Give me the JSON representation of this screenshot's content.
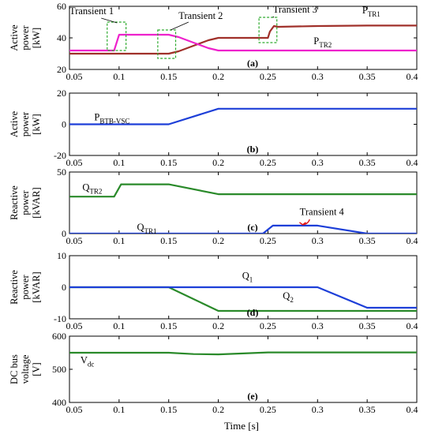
{
  "x_label": "Time [s]",
  "x_ticks": [
    "0.05",
    "0.1",
    "0.15",
    "0.2",
    "0.25",
    "0.3",
    "0.35",
    "0.4"
  ],
  "chart_data": [
    {
      "id": "a",
      "type": "line",
      "panel_label": "(a)",
      "ylabel_lines": [
        "Active",
        "power",
        "[kW]"
      ],
      "xlim": [
        0.05,
        0.4
      ],
      "ylim": [
        20,
        60
      ],
      "y_ticks": [
        "20",
        "40",
        "60"
      ],
      "series": [
        {
          "color": "#a0302a",
          "x": [
            0.05,
            0.095,
            0.15,
            0.16,
            0.175,
            0.19,
            0.2,
            0.25,
            0.252,
            0.256,
            0.26,
            0.3,
            0.35,
            0.4
          ],
          "y": [
            30,
            30,
            30,
            31.5,
            35,
            38.5,
            40,
            40,
            44,
            47.5,
            47,
            47.5,
            47.8,
            47.8
          ]
        },
        {
          "color": "#ee22cc",
          "x": [
            0.05,
            0.095,
            0.1,
            0.15,
            0.16,
            0.175,
            0.19,
            0.2,
            0.25,
            0.3,
            0.35,
            0.4
          ],
          "y": [
            32,
            32,
            42,
            42,
            40.5,
            37,
            33.5,
            32,
            32,
            32,
            32,
            32
          ]
        }
      ],
      "annotations": [
        {
          "text": "Transient 1",
          "x": 0.05,
          "y": 55
        },
        {
          "text": "Transient 2",
          "x": 0.16,
          "y": 52
        },
        {
          "text": "Transient 3",
          "x": 0.255,
          "y": 56
        },
        {
          "text": "P",
          "sub": "TR1",
          "x": 0.345,
          "y": 55.5
        },
        {
          "text": "P",
          "sub": "TR2",
          "x": 0.296,
          "y": 36
        }
      ],
      "boxes": [
        {
          "x0": 0.088,
          "x1": 0.107,
          "y0": 32,
          "y1": 50
        },
        {
          "x0": 0.139,
          "x1": 0.157,
          "y0": 27,
          "y1": 45
        },
        {
          "x0": 0.241,
          "x1": 0.259,
          "y0": 37,
          "y1": 53
        }
      ]
    },
    {
      "id": "b",
      "type": "line",
      "panel_label": "(b)",
      "ylabel_lines": [
        "Active",
        "power",
        "[kW]"
      ],
      "xlim": [
        0.05,
        0.4
      ],
      "ylim": [
        -20,
        20
      ],
      "y_ticks": [
        "-20",
        "0",
        "20"
      ],
      "series": [
        {
          "color": "#1d3fd8",
          "x": [
            0.05,
            0.15,
            0.2,
            0.25,
            0.3,
            0.35,
            0.4
          ],
          "y": [
            0,
            0,
            10,
            10,
            10,
            10,
            10
          ]
        }
      ],
      "annotations": [
        {
          "text": "P",
          "sub": "BTB-VSC",
          "x": 0.075,
          "y": 2.5
        }
      ]
    },
    {
      "id": "c",
      "type": "line",
      "panel_label": "(c)",
      "ylabel_lines": [
        "Reactive",
        "power",
        "[kVAR]"
      ],
      "xlim": [
        0.05,
        0.4
      ],
      "ylim": [
        0,
        50
      ],
      "y_ticks": [
        "0",
        "50"
      ],
      "series": [
        {
          "color": "#2a8a2a",
          "x": [
            0.05,
            0.095,
            0.102,
            0.15,
            0.2,
            0.25,
            0.3,
            0.35,
            0.4
          ],
          "y": [
            30,
            30,
            40,
            40,
            32,
            32,
            32,
            32,
            32
          ]
        },
        {
          "color": "#1d3fd8",
          "x": [
            0.05,
            0.245,
            0.255,
            0.3,
            0.35,
            0.4
          ],
          "y": [
            0,
            0,
            6.5,
            6.5,
            0,
            0
          ]
        }
      ],
      "annotations": [
        {
          "text": "Q",
          "sub": "TR2",
          "x": 0.063,
          "y": 35
        },
        {
          "text": "Q",
          "sub": "TR1",
          "x": 0.118,
          "y": 2.5
        },
        {
          "text": "Transient 4",
          "x": 0.282,
          "y": 15
        }
      ]
    },
    {
      "id": "d",
      "type": "line",
      "panel_label": "(d)",
      "ylabel_lines": [
        "Reactive",
        "power",
        "[kVAR]"
      ],
      "xlim": [
        0.05,
        0.4
      ],
      "ylim": [
        -10,
        10
      ],
      "y_ticks": [
        "-10",
        "0",
        "10"
      ],
      "series": [
        {
          "color": "#2a8a2a",
          "x": [
            0.05,
            0.15,
            0.2,
            0.25,
            0.3,
            0.35,
            0.4
          ],
          "y": [
            0,
            0,
            -7.5,
            -7.5,
            -7.5,
            -7.5,
            -7.5
          ]
        },
        {
          "color": "#1d3fd8",
          "x": [
            0.05,
            0.15,
            0.2,
            0.25,
            0.3,
            0.35,
            0.4
          ],
          "y": [
            0,
            0,
            0,
            0,
            0,
            -6.5,
            -6.5
          ]
        }
      ],
      "annotations": [
        {
          "text": "Q",
          "sub": "1",
          "x": 0.224,
          "y": 2.6
        },
        {
          "text": "Q",
          "sub": "2",
          "x": 0.265,
          "y": -3.8
        }
      ]
    },
    {
      "id": "e",
      "type": "line",
      "panel_label": "(e)",
      "ylabel_lines": [
        "DC bus",
        "voltage",
        "[V]"
      ],
      "xlim": [
        0.05,
        0.4
      ],
      "ylim": [
        400,
        600
      ],
      "y_ticks": [
        "400",
        "500",
        "600"
      ],
      "series": [
        {
          "color": "#2a8a2a",
          "x": [
            0.05,
            0.1,
            0.15,
            0.175,
            0.2,
            0.25,
            0.3,
            0.35,
            0.4
          ],
          "y": [
            550,
            550,
            550,
            546,
            545,
            551,
            551,
            551,
            551
          ]
        }
      ],
      "annotations": [
        {
          "text": "V",
          "sub": "dc",
          "x": 0.061,
          "y": 518
        }
      ]
    }
  ]
}
